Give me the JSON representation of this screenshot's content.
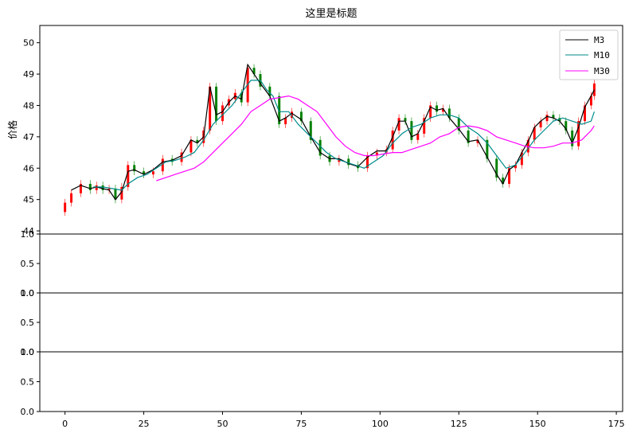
{
  "chart_data": {
    "type": "line",
    "title": "这里是标题",
    "ylabel": "价格",
    "xlim": [
      -8,
      177
    ],
    "ylim": [
      43.9,
      50.55
    ],
    "xticks": [
      0,
      25,
      50,
      75,
      100,
      125,
      150,
      175
    ],
    "yticks": [
      44,
      45,
      46,
      47,
      48,
      49,
      50
    ],
    "legend_position": "top-right",
    "candle_colors": {
      "up": "#ff0000",
      "down": "#008000"
    },
    "candle_points": {
      "x": [
        0,
        2,
        5,
        8,
        10,
        12,
        14,
        16,
        18,
        20,
        22,
        25,
        28,
        31,
        34,
        37,
        40,
        42,
        44,
        46,
        48,
        50,
        52,
        54,
        56,
        58,
        60,
        62,
        65,
        68,
        70,
        72,
        75,
        78,
        81,
        84,
        87,
        90,
        93,
        96,
        99,
        102,
        104,
        106,
        108,
        110,
        112,
        114,
        116,
        118,
        120,
        122,
        125,
        128,
        131,
        134,
        137,
        139,
        141,
        143,
        145,
        147,
        149,
        151,
        153,
        155,
        157,
        159,
        161,
        163,
        165,
        167,
        168
      ],
      "close": [
        44.9,
        45.2,
        45.5,
        45.3,
        45.45,
        45.3,
        45.35,
        45.0,
        45.4,
        46.1,
        45.9,
        45.8,
        45.9,
        46.3,
        46.2,
        46.5,
        46.9,
        46.8,
        47.2,
        48.6,
        47.5,
        48.0,
        48.2,
        48.4,
        48.1,
        49.2,
        49.0,
        48.6,
        48.3,
        47.4,
        47.6,
        47.8,
        47.5,
        46.9,
        46.4,
        46.2,
        46.3,
        46.1,
        46.0,
        46.4,
        46.5,
        46.6,
        47.2,
        47.6,
        47.5,
        46.9,
        47.1,
        47.6,
        48.0,
        47.8,
        47.9,
        47.6,
        47.2,
        46.8,
        46.9,
        46.3,
        45.7,
        45.5,
        46.0,
        46.1,
        46.5,
        46.9,
        47.3,
        47.5,
        47.7,
        47.6,
        47.5,
        47.2,
        46.7,
        47.5,
        48.0,
        48.3,
        48.7
      ]
    },
    "series": [
      {
        "name": "M3",
        "color": "#000000",
        "x": [
          2,
          5,
          8,
          10,
          12,
          14,
          16,
          18,
          20,
          22,
          25,
          28,
          31,
          34,
          37,
          40,
          42,
          44,
          46,
          48,
          50,
          52,
          54,
          56,
          58,
          60,
          62,
          65,
          68,
          70,
          72,
          75,
          78,
          81,
          84,
          87,
          90,
          93,
          96,
          99,
          102,
          104,
          106,
          108,
          110,
          112,
          114,
          116,
          118,
          120,
          122,
          125,
          128,
          131,
          134,
          137,
          139,
          141,
          143,
          145,
          147,
          149,
          151,
          153,
          155,
          157,
          159,
          161,
          163,
          165,
          167,
          168
        ],
        "values": [
          45.3,
          45.45,
          45.35,
          45.4,
          45.35,
          45.3,
          45.0,
          45.25,
          45.9,
          45.95,
          45.8,
          45.95,
          46.2,
          46.25,
          46.4,
          46.9,
          46.8,
          47.0,
          48.6,
          47.7,
          47.8,
          48.1,
          48.3,
          48.2,
          49.3,
          49.0,
          48.7,
          48.3,
          47.5,
          47.6,
          47.75,
          47.55,
          47.0,
          46.5,
          46.3,
          46.3,
          46.15,
          46.05,
          46.35,
          46.55,
          46.55,
          47.0,
          47.5,
          47.5,
          47.0,
          47.1,
          47.5,
          47.95,
          47.85,
          47.9,
          47.6,
          47.25,
          46.85,
          46.9,
          46.35,
          45.8,
          45.5,
          45.95,
          46.1,
          46.5,
          46.85,
          47.3,
          47.5,
          47.65,
          47.6,
          47.5,
          47.25,
          46.8,
          47.3,
          47.95,
          48.3,
          48.5
        ]
      },
      {
        "name": "M10",
        "color": "#008b8b",
        "x": [
          9,
          12,
          15,
          18,
          20,
          23,
          26,
          29,
          32,
          35,
          38,
          41,
          44,
          47,
          50,
          53,
          56,
          59,
          62,
          64,
          66,
          68,
          71,
          74,
          77,
          80,
          83,
          86,
          89,
          92,
          95,
          98,
          101,
          104,
          107,
          110,
          113,
          116,
          119,
          122,
          125,
          128,
          131,
          134,
          137,
          140,
          143,
          146,
          149,
          152,
          155,
          158,
          161,
          164,
          167,
          168
        ],
        "values": [
          45.4,
          45.4,
          45.35,
          45.3,
          45.5,
          45.7,
          45.8,
          46.0,
          46.2,
          46.25,
          46.35,
          46.5,
          46.9,
          47.4,
          47.7,
          48.0,
          48.4,
          48.8,
          48.8,
          48.5,
          48.3,
          47.8,
          47.8,
          47.4,
          47.1,
          46.8,
          46.5,
          46.3,
          46.2,
          46.1,
          46.0,
          46.2,
          46.4,
          46.8,
          47.1,
          47.3,
          47.4,
          47.6,
          47.7,
          47.7,
          47.6,
          47.3,
          47.1,
          46.8,
          46.4,
          46.0,
          46.1,
          46.5,
          46.9,
          47.2,
          47.5,
          47.6,
          47.5,
          47.4,
          47.5,
          47.8
        ]
      },
      {
        "name": "M30",
        "color": "#ff00ff",
        "x": [
          29,
          32,
          35,
          38,
          41,
          44,
          47,
          50,
          53,
          56,
          59,
          62,
          65,
          68,
          71,
          74,
          77,
          80,
          83,
          86,
          89,
          92,
          95,
          98,
          101,
          104,
          107,
          110,
          113,
          116,
          119,
          122,
          125,
          128,
          131,
          134,
          137,
          140,
          143,
          146,
          149,
          152,
          155,
          158,
          161,
          164,
          167,
          168
        ],
        "values": [
          45.6,
          45.7,
          45.8,
          45.9,
          46.0,
          46.2,
          46.5,
          46.8,
          47.1,
          47.4,
          47.8,
          48.0,
          48.2,
          48.25,
          48.3,
          48.2,
          48.0,
          47.8,
          47.4,
          47.0,
          46.7,
          46.5,
          46.4,
          46.4,
          46.45,
          46.5,
          46.5,
          46.6,
          46.7,
          46.8,
          47.0,
          47.1,
          47.3,
          47.35,
          47.3,
          47.2,
          47.0,
          46.9,
          46.8,
          46.7,
          46.65,
          46.65,
          46.7,
          46.8,
          46.8,
          46.9,
          47.2,
          47.35
        ]
      }
    ],
    "subplots": [
      {
        "yticks": [
          "0.0",
          "0.5",
          "1.0"
        ],
        "xticks": []
      },
      {
        "yticks": [
          "0.0",
          "0.5",
          "1.0"
        ],
        "xticks": []
      },
      {
        "yticks": [
          "0.0",
          "0.5",
          "1.0"
        ],
        "xticks": [
          "0",
          "25",
          "50",
          "75",
          "100",
          "125",
          "150",
          "175"
        ]
      }
    ]
  }
}
